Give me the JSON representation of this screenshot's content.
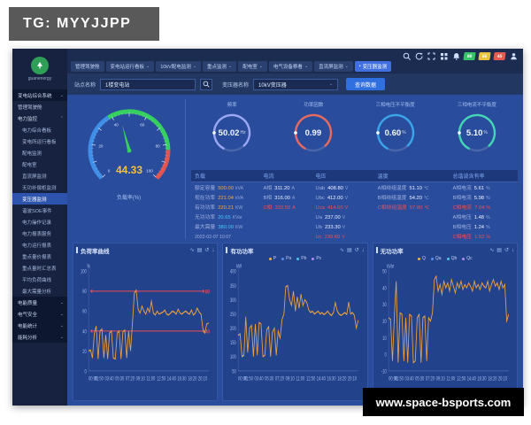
{
  "page": {
    "tg_label": "TG: MYYJJPP",
    "site_label": "www.space-bsports.com"
  },
  "brand": {
    "name": "guanenergy"
  },
  "nav": {
    "tabs": [
      {
        "label": "管理驾驶舱",
        "dropdown": false,
        "active": false
      },
      {
        "label": "变电站运行看板",
        "dropdown": true,
        "active": false
      },
      {
        "label": "10kV配电监测",
        "dropdown": true,
        "active": false
      },
      {
        "label": "重点监测",
        "dropdown": true,
        "active": false
      },
      {
        "label": "配电室",
        "dropdown": true,
        "active": false
      },
      {
        "label": "电气设备察看",
        "dropdown": true,
        "active": false
      },
      {
        "label": "直流屏监测",
        "dropdown": true,
        "active": false
      },
      {
        "label": "变压器监测",
        "dropdown": false,
        "active": true
      }
    ]
  },
  "header_icons": [
    "search-icon",
    "refresh-icon",
    "fullscreen-icon",
    "grid-icon",
    "bell-icon"
  ],
  "alarm_badges": [
    {
      "count": "98",
      "color": "#35c46a"
    },
    {
      "count": "66",
      "color": "#e8c33c"
    },
    {
      "count": "45",
      "color": "#e85a4f"
    }
  ],
  "filter": {
    "site_label": "站点名称",
    "site_value": "1楼变电站",
    "transformer_label": "变压器名称",
    "transformer_value": "10kV变压器",
    "query_button": "查询数据"
  },
  "sidebar": {
    "items": [
      {
        "label": "变电站综合系统",
        "type": "root",
        "chevron": "down"
      },
      {
        "label": "管理驾驶舱",
        "type": "item"
      },
      {
        "label": "电力监控",
        "type": "group",
        "chevron": "up"
      },
      {
        "label": "电力综合看板",
        "type": "child"
      },
      {
        "label": "变电所运行看板",
        "type": "child"
      },
      {
        "label": "配电监测",
        "type": "child"
      },
      {
        "label": "配电室",
        "type": "child"
      },
      {
        "label": "直流屏监测",
        "type": "child"
      },
      {
        "label": "无功补偿柜监测",
        "type": "child"
      },
      {
        "label": "变压器监测",
        "type": "child",
        "selected": true
      },
      {
        "label": "谐波SOE事件",
        "type": "child"
      },
      {
        "label": "电力操作记录",
        "type": "child"
      },
      {
        "label": "电力报表服务",
        "type": "child"
      },
      {
        "label": "电力运行报表",
        "type": "child"
      },
      {
        "label": "重点量价报表",
        "type": "child"
      },
      {
        "label": "重点量时汇总表",
        "type": "child"
      },
      {
        "label": "平均负荷曲线",
        "type": "child"
      },
      {
        "label": "最大需量分析",
        "type": "child"
      },
      {
        "label": "电能质量",
        "type": "group2",
        "chevron": "down"
      },
      {
        "label": "电气安全",
        "type": "group2",
        "chevron": "down"
      },
      {
        "label": "电能统计",
        "type": "group2",
        "chevron": "down"
      },
      {
        "label": "能耗分析",
        "type": "group2",
        "chevron": "down"
      }
    ]
  },
  "gauge": {
    "value": "44.33",
    "label": "负载率(%)",
    "min": 0,
    "max": 100,
    "tick_labels": [
      0,
      20,
      40,
      60,
      80,
      100
    ],
    "segments": [
      {
        "to": 38,
        "color": "#3f8fe8"
      },
      {
        "to": 83,
        "color": "#35d05f"
      },
      {
        "to": 100,
        "color": "#e0554f"
      }
    ],
    "value_color": "#f5c23c",
    "needle_color": "#35d05f"
  },
  "stat_cards": [
    {
      "title": "频率",
      "value": "50.02",
      "unit": "Hz",
      "color": "#9aa7f5"
    },
    {
      "title": "功率因数",
      "value": "0.99",
      "unit": "",
      "color": "#e86a5f"
    },
    {
      "title": "三相电压不平衡度",
      "value": "0.60",
      "unit": "%",
      "color": "#38a6e8"
    },
    {
      "title": "三相电流不平衡度",
      "value": "5.10",
      "unit": "%",
      "color": "#43d6b5"
    }
  ],
  "table": {
    "columns": [
      {
        "header": "负载",
        "width": "c1",
        "rows": [
          {
            "label": "额定容量",
            "value": "500.00",
            "unit": "kVA",
            "color": "orange"
          },
          {
            "label": "视在功率",
            "value": "221.04",
            "unit": "kVA",
            "color": "orange"
          },
          {
            "label": "有功功率",
            "value": "220.21",
            "unit": "KW",
            "color": "orange"
          },
          {
            "label": "无功功率",
            "value": "20.65",
            "unit": "KVar",
            "color": "cyan"
          },
          {
            "label": "最大需量",
            "value": "380.00",
            "unit": "KW",
            "color": "cyan"
          },
          {
            "label": "2022-02-07 10:07",
            "value": "",
            "unit": "",
            "color": "dim"
          }
        ]
      },
      {
        "header": "电流",
        "width": "c2",
        "rows": [
          {
            "label": "A相",
            "value": "311.20",
            "unit": "A",
            "color": "white"
          },
          {
            "label": "B相",
            "value": "316.00",
            "unit": "A",
            "color": "white"
          },
          {
            "label": "C相",
            "value": "333.50",
            "unit": "A",
            "color": "red"
          }
        ]
      },
      {
        "header": "电压",
        "width": "c3",
        "rows": [
          {
            "label": "Uab",
            "value": "408.80",
            "unit": "V",
            "color": "white"
          },
          {
            "label": "Ubc",
            "value": "412.00",
            "unit": "V",
            "color": "white"
          },
          {
            "label": "Uca",
            "value": "414.60",
            "unit": "V",
            "color": "red"
          },
          {
            "label": "Ua",
            "value": "237.00",
            "unit": "V",
            "color": "white"
          },
          {
            "label": "Ub",
            "value": "233.30",
            "unit": "V",
            "color": "white"
          },
          {
            "label": "Uc",
            "value": "239.60",
            "unit": "V",
            "color": "red"
          }
        ]
      },
      {
        "header": "温度",
        "width": "c4",
        "rows": [
          {
            "label": "A相绕组温度",
            "value": "51.10",
            "unit": "℃",
            "color": "white"
          },
          {
            "label": "B相绕组温度",
            "value": "54.20",
            "unit": "℃",
            "color": "white"
          },
          {
            "label": "C相绕组温度",
            "value": "57.80",
            "unit": "℃",
            "color": "red"
          }
        ]
      },
      {
        "header": "总谐波含有率",
        "width": "c5",
        "rows": [
          {
            "label": "A相电流",
            "value": "5.61",
            "unit": "%",
            "color": "white"
          },
          {
            "label": "B相电流",
            "value": "5.98",
            "unit": "%",
            "color": "white"
          },
          {
            "label": "C相电流",
            "value": "7.04",
            "unit": "%",
            "color": "red"
          },
          {
            "label": "A相电压",
            "value": "1.48",
            "unit": "%",
            "color": "white"
          },
          {
            "label": "B相电压",
            "value": "1.24",
            "unit": "%",
            "color": "white"
          },
          {
            "label": "C相电压",
            "value": "1.52",
            "unit": "%",
            "color": "red"
          }
        ]
      }
    ]
  },
  "toolbox_glyphs": [
    "∿",
    "▤",
    "↺",
    "↓"
  ],
  "chart_data": [
    {
      "type": "line",
      "title": "负荷率曲线",
      "y_unit": "%",
      "ylim": [
        0,
        100
      ],
      "yticks": [
        0,
        20,
        40,
        60,
        80,
        100
      ],
      "x_labels": [
        "00:00",
        "01:50",
        "03:40",
        "05:30",
        "07:20",
        "09:10",
        "11:00",
        "12:50",
        "14:40",
        "16:30",
        "18:20",
        "20:10"
      ],
      "line_color": "#f0a23c",
      "thresholds": [
        {
          "value": 80,
          "label": "80"
        },
        {
          "value": 40,
          "label": "40"
        }
      ],
      "values": [
        20,
        21,
        13,
        38,
        45,
        12,
        40,
        42,
        13,
        36,
        12,
        38,
        40,
        13,
        12,
        38,
        40,
        12,
        39,
        41,
        13,
        40,
        20,
        48,
        78,
        81,
        62,
        58,
        65,
        60,
        57,
        63,
        59,
        70,
        58,
        56,
        60,
        57,
        58,
        59,
        61,
        57,
        56,
        58,
        60,
        59,
        57,
        62,
        58,
        57,
        59,
        60,
        58,
        57,
        61,
        56,
        58,
        63,
        59,
        57,
        42,
        38,
        47,
        48
      ]
    },
    {
      "type": "line",
      "title": "有功功率",
      "y_unit": "kW",
      "ylim": [
        50,
        400
      ],
      "yticks": [
        50,
        100,
        150,
        200,
        250,
        300,
        350,
        400
      ],
      "x_labels": [
        "00:00",
        "01:50",
        "03:40",
        "05:30",
        "07:20",
        "09:10",
        "11:00",
        "12:50",
        "14:40",
        "16:30",
        "18:20",
        "20:10"
      ],
      "line_color": "#f0a23c",
      "legend": [
        {
          "label": "P",
          "color": "#f0b13c"
        },
        {
          "label": "Pa",
          "color": "#5a8ff0"
        },
        {
          "label": "Pb",
          "color": "#49c8e8"
        },
        {
          "label": "Pc",
          "color": "#b08ef0"
        }
      ],
      "values": [
        175,
        180,
        100,
        105,
        240,
        115,
        200,
        210,
        100,
        215,
        105,
        220,
        215,
        100,
        105,
        195,
        205,
        100,
        185,
        200,
        105,
        190,
        165,
        230,
        250,
        345,
        350,
        300,
        280,
        330,
        260,
        310,
        270,
        320,
        280,
        300,
        290,
        265,
        255,
        260,
        250,
        255,
        260,
        250,
        255,
        248,
        252,
        260,
        250,
        245,
        255,
        290,
        260,
        250,
        245,
        250,
        255,
        248,
        292,
        250,
        255,
        245,
        200,
        228
      ]
    },
    {
      "type": "line",
      "title": "无功功率",
      "y_unit": "kVar",
      "ylim": [
        -10,
        50
      ],
      "yticks": [
        -10,
        0,
        10,
        20,
        30,
        40,
        50
      ],
      "x_labels": [
        "00:00",
        "01:50",
        "03:40",
        "05:30",
        "07:20",
        "09:10",
        "11:00",
        "12:50",
        "14:40",
        "16:30",
        "18:20",
        "20:10"
      ],
      "line_color": "#f0a23c",
      "legend": [
        {
          "label": "Q",
          "color": "#f0b13c"
        },
        {
          "label": "Qa",
          "color": "#5a8ff0"
        },
        {
          "label": "Qb",
          "color": "#49c8e8"
        },
        {
          "label": "Qc",
          "color": "#b08ef0"
        }
      ],
      "values": [
        22,
        21,
        -4,
        23,
        44,
        -5,
        25,
        24,
        -4,
        22,
        -5,
        24,
        23,
        -5,
        -4,
        22,
        24,
        -5,
        22,
        23,
        -4,
        22,
        20,
        25,
        45,
        47,
        38,
        42,
        36,
        44,
        40,
        43,
        38,
        45,
        41,
        37,
        43,
        40,
        44,
        39,
        42,
        40,
        43,
        41,
        38,
        44,
        40,
        42,
        39,
        43,
        41,
        40,
        44,
        38,
        42,
        45,
        41,
        43,
        39,
        44,
        40,
        42,
        20,
        24
      ]
    }
  ]
}
